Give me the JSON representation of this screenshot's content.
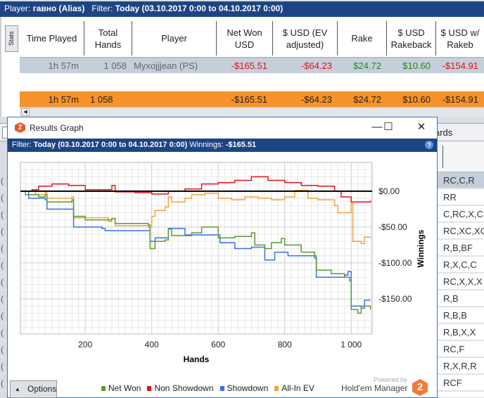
{
  "topbar": {
    "player_label": "Player:",
    "player": "гавно (Alias)",
    "filter_label": "Filter:",
    "filter": "Today (03.10.2017 0:00 to 04.10.2017 0:00)"
  },
  "stats_tab": "Stats",
  "columns": [
    "Time Played",
    "Total Hands",
    "Player",
    "Net Won USD",
    "$ USD (EV adjusted)",
    "Rake",
    "$ USD Rakeback",
    "$ USD w/ Rakeb"
  ],
  "row": {
    "time": "1h 57m",
    "hands": "1 058",
    "player": "Myxojjjean (PS)",
    "net": "-$165.51",
    "ev": "-$64.23",
    "rake": "$24.72",
    "rakeback": "$10.60",
    "with_rb": "-$154.91"
  },
  "total": {
    "time": "1h 57m",
    "hands": "1 058",
    "net": "-$165.51",
    "ev": "-$64.23",
    "rake": "$24.72",
    "rakeback": "$10.60",
    "with_rb": "-$154.91"
  },
  "tab_partial": "ards",
  "right_rows": [
    "RC,C,R",
    "RR",
    "C,RC,X,C",
    "RC,XC,XC,X",
    "R,B,BF",
    "R,X,C,C",
    "RC,X,X,X",
    "R,B",
    "R,B,B",
    "R,B,X,X",
    "RC,F",
    "R,X,R,R",
    "RCF"
  ],
  "left_glyph": "(",
  "window": {
    "title": "Results Graph",
    "logo": "2",
    "filter_label": "Filter:",
    "filter": "Today (03.10.2017 0:00 to 04.10.2017 0:00)",
    "winnings_label": "Winnings:",
    "winnings": "-$165.51",
    "help": "?",
    "options": "Options",
    "powered": "Powered by",
    "brand": "Hold'em Manager",
    "brand_logo": "2"
  },
  "colors": {
    "net_won": "#5a9a32",
    "non_showdown": "#e8101a",
    "showdown": "#3a6ff0",
    "allin_ev": "#f5a040"
  },
  "chart_data": {
    "type": "line",
    "xlabel": "Hands",
    "ylabel": "Winnings",
    "xlim": [
      5,
      1063
    ],
    "ylim": [
      -199,
      40
    ],
    "xticks": [
      200,
      400,
      600,
      800,
      1000
    ],
    "xtick_labels": [
      "200",
      "400",
      "600",
      "800",
      "1 000"
    ],
    "yticks": [
      0,
      -50,
      -100,
      -150
    ],
    "ytick_labels": [
      "$0.00",
      "-$50.00",
      "-$100.00",
      "-$150.00"
    ],
    "grid": true,
    "legend": "bottom",
    "series": [
      {
        "name": "Net Won",
        "color": "#5a9a32",
        "points": [
          [
            5,
            0
          ],
          [
            20,
            -5
          ],
          [
            60,
            -8
          ],
          [
            80,
            -5
          ],
          [
            85,
            -15
          ],
          [
            160,
            -12
          ],
          [
            165,
            -35
          ],
          [
            200,
            -40
          ],
          [
            280,
            -38
          ],
          [
            290,
            -45
          ],
          [
            390,
            -47
          ],
          [
            395,
            -80
          ],
          [
            410,
            -70
          ],
          [
            440,
            -68
          ],
          [
            450,
            -53
          ],
          [
            460,
            -62
          ],
          [
            520,
            -58
          ],
          [
            550,
            -50
          ],
          [
            600,
            -65
          ],
          [
            650,
            -63
          ],
          [
            700,
            -58
          ],
          [
            710,
            -75
          ],
          [
            740,
            -80
          ],
          [
            760,
            -72
          ],
          [
            790,
            -66
          ],
          [
            800,
            -75
          ],
          [
            850,
            -85
          ],
          [
            890,
            -90
          ],
          [
            895,
            -110
          ],
          [
            940,
            -115
          ],
          [
            980,
            -120
          ],
          [
            995,
            -125
          ],
          [
            1000,
            -165
          ],
          [
            1020,
            -170
          ],
          [
            1030,
            -160
          ],
          [
            1058,
            -165
          ]
        ]
      },
      {
        "name": "Non Showdown",
        "color": "#e8101a",
        "points": [
          [
            5,
            0
          ],
          [
            40,
            2
          ],
          [
            60,
            7
          ],
          [
            100,
            10
          ],
          [
            150,
            8
          ],
          [
            200,
            2
          ],
          [
            280,
            8
          ],
          [
            290,
            -1
          ],
          [
            350,
            -2
          ],
          [
            400,
            -4
          ],
          [
            450,
            0
          ],
          [
            500,
            3
          ],
          [
            550,
            10
          ],
          [
            600,
            12
          ],
          [
            650,
            15
          ],
          [
            700,
            20
          ],
          [
            750,
            15
          ],
          [
            800,
            12
          ],
          [
            850,
            8
          ],
          [
            900,
            7
          ],
          [
            950,
            0
          ],
          [
            970,
            -8
          ],
          [
            1000,
            -15
          ],
          [
            1058,
            -13
          ]
        ]
      },
      {
        "name": "Showdown",
        "color": "#3a6ff0",
        "points": [
          [
            5,
            0
          ],
          [
            30,
            -10
          ],
          [
            80,
            -12
          ],
          [
            85,
            -25
          ],
          [
            160,
            -25
          ],
          [
            165,
            -50
          ],
          [
            250,
            -52
          ],
          [
            260,
            -55
          ],
          [
            390,
            -55
          ],
          [
            395,
            -70
          ],
          [
            410,
            -65
          ],
          [
            450,
            -52
          ],
          [
            500,
            -61
          ],
          [
            600,
            -61
          ],
          [
            605,
            -72
          ],
          [
            650,
            -80
          ],
          [
            700,
            -78
          ],
          [
            740,
            -96
          ],
          [
            770,
            -85
          ],
          [
            810,
            -90
          ],
          [
            850,
            -90
          ],
          [
            890,
            -93
          ],
          [
            895,
            -120
          ],
          [
            980,
            -117
          ],
          [
            990,
            -112
          ],
          [
            1000,
            -160
          ],
          [
            1030,
            -163
          ],
          [
            1040,
            -152
          ],
          [
            1058,
            -152
          ]
        ]
      },
      {
        "name": "All-In EV",
        "color": "#f5a040",
        "points": [
          [
            5,
            0
          ],
          [
            50,
            -5
          ],
          [
            80,
            -2
          ],
          [
            85,
            -10
          ],
          [
            160,
            -8
          ],
          [
            165,
            -37
          ],
          [
            270,
            -42
          ],
          [
            280,
            -38
          ],
          [
            290,
            -48
          ],
          [
            390,
            -50
          ],
          [
            400,
            -35
          ],
          [
            410,
            -27
          ],
          [
            440,
            -22
          ],
          [
            450,
            -8
          ],
          [
            460,
            -15
          ],
          [
            500,
            -10
          ],
          [
            520,
            -5
          ],
          [
            560,
            -3
          ],
          [
            600,
            -10
          ],
          [
            640,
            -12
          ],
          [
            680,
            -8
          ],
          [
            720,
            -10
          ],
          [
            760,
            -12
          ],
          [
            800,
            -8
          ],
          [
            830,
            1
          ],
          [
            870,
            -10
          ],
          [
            900,
            -12
          ],
          [
            950,
            -20
          ],
          [
            960,
            -30
          ],
          [
            990,
            -30
          ],
          [
            1000,
            -17
          ],
          [
            1005,
            -70
          ],
          [
            1030,
            -73
          ],
          [
            1040,
            -64
          ],
          [
            1058,
            -65
          ]
        ]
      }
    ]
  }
}
